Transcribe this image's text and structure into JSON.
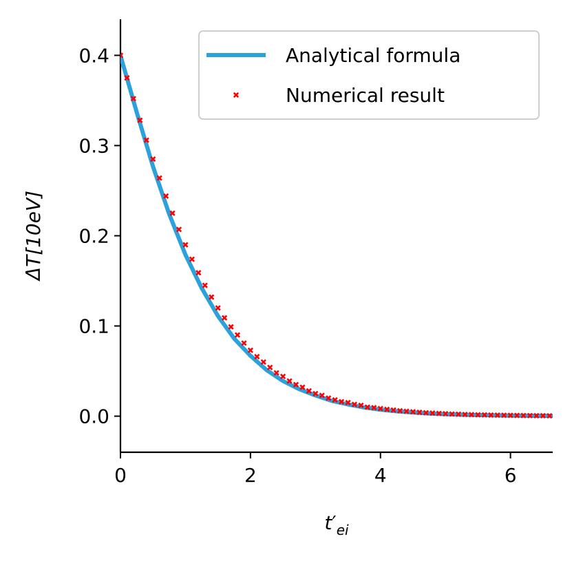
{
  "chart_data": {
    "type": "line",
    "title": "",
    "xlabel_base": "t",
    "xlabel_prime": "′",
    "xlabel_sub": "ei",
    "ylabel": "ΔT[10eV]",
    "xlim": [
      0,
      6.65
    ],
    "ylim": [
      -0.04,
      0.44
    ],
    "xticks": [
      0,
      2,
      4,
      6
    ],
    "xtick_labels": [
      "0",
      "2",
      "4",
      "6"
    ],
    "yticks": [
      0.0,
      0.1,
      0.2,
      0.3,
      0.4
    ],
    "ytick_labels": [
      "0.0",
      "0.1",
      "0.2",
      "0.3",
      "0.4"
    ],
    "grid": false,
    "legend_position": "top-right",
    "colors": {
      "line": "#2ca2dd",
      "markers": "#ff0000",
      "axes": "#000000"
    },
    "series": [
      {
        "name": "Analytical formula",
        "kind": "line",
        "x": [
          0.0,
          0.25,
          0.5,
          0.75,
          1.0,
          1.25,
          1.5,
          1.75,
          2.0,
          2.25,
          2.5,
          2.75,
          3.0,
          3.25,
          3.5,
          3.75,
          4.0,
          4.25,
          4.5,
          4.75,
          5.0,
          5.25,
          5.5,
          5.75,
          6.0,
          6.25,
          6.5,
          6.65
        ],
        "y": [
          0.4,
          0.337,
          0.277,
          0.224,
          0.179,
          0.142,
          0.111,
          0.086,
          0.067,
          0.051,
          0.039,
          0.03,
          0.023,
          0.017,
          0.013,
          0.0097,
          0.0072,
          0.0054,
          0.004,
          0.003,
          0.0022,
          0.0016,
          0.0012,
          0.0009,
          0.0007,
          0.0005,
          0.0004,
          0.0003
        ]
      },
      {
        "name": "Numerical result",
        "kind": "scatter",
        "x": [
          0.0,
          0.1,
          0.2,
          0.3,
          0.4,
          0.5,
          0.6,
          0.7,
          0.8,
          0.9,
          1.0,
          1.1,
          1.2,
          1.3,
          1.4,
          1.5,
          1.6,
          1.7,
          1.8,
          1.9,
          2.0,
          2.1,
          2.2,
          2.3,
          2.4,
          2.5,
          2.6,
          2.7,
          2.8,
          2.9,
          3.0,
          3.1,
          3.2,
          3.3,
          3.4,
          3.5,
          3.6,
          3.7,
          3.8,
          3.9,
          4.0,
          4.1,
          4.2,
          4.3,
          4.4,
          4.5,
          4.6,
          4.7,
          4.8,
          4.9,
          5.0,
          5.1,
          5.2,
          5.3,
          5.4,
          5.5,
          5.6,
          5.7,
          5.8,
          5.9,
          6.0,
          6.1,
          6.2,
          6.3,
          6.4,
          6.5,
          6.6
        ],
        "y": [
          0.4,
          0.375,
          0.352,
          0.328,
          0.306,
          0.285,
          0.264,
          0.244,
          0.225,
          0.207,
          0.19,
          0.174,
          0.159,
          0.145,
          0.132,
          0.12,
          0.109,
          0.099,
          0.09,
          0.081,
          0.073,
          0.066,
          0.06,
          0.054,
          0.048,
          0.044,
          0.039,
          0.035,
          0.032,
          0.028,
          0.025,
          0.023,
          0.02,
          0.018,
          0.016,
          0.015,
          0.013,
          0.012,
          0.01,
          0.0094,
          0.0084,
          0.0075,
          0.0067,
          0.006,
          0.0054,
          0.0048,
          0.0043,
          0.0038,
          0.0034,
          0.003,
          0.0027,
          0.0024,
          0.0022,
          0.0019,
          0.0017,
          0.0015,
          0.0014,
          0.0012,
          0.0011,
          0.001,
          0.0009,
          0.0008,
          0.0007,
          0.0006,
          0.0005,
          0.0005,
          0.0004
        ]
      }
    ]
  }
}
